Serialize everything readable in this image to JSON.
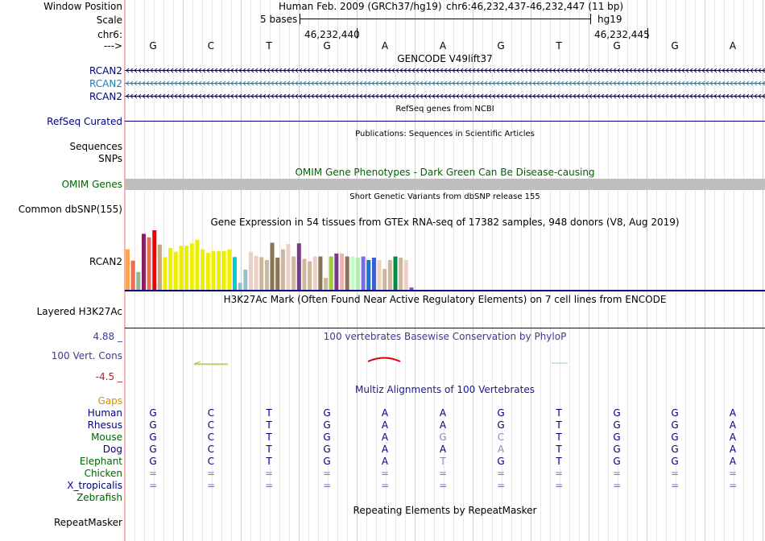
{
  "position": {
    "window_position_label": "Window Position",
    "assembly_text": "Human Feb. 2009 (GRCh37/hg19)",
    "range_text": "chr6:46,232,437-46,232,447 (11 bp)",
    "scale_label": "Scale",
    "scale_bases": "5 bases",
    "scale_db": "hg19",
    "chrom_label": "chr6:",
    "coord_left": "46,232,440",
    "coord_right": "46,232,445",
    "strand_label": "--->"
  },
  "sequence": [
    "G",
    "C",
    "T",
    "G",
    "A",
    "A",
    "G",
    "T",
    "G",
    "G",
    "A"
  ],
  "gencode": {
    "title": "GENCODE V49lift37",
    "tracks": [
      {
        "label": "RCAN2",
        "color": "#000080"
      },
      {
        "label": "RCAN2",
        "color": "#1a7fb5"
      },
      {
        "label": "RCAN2",
        "color": "#000080"
      }
    ]
  },
  "refseq": {
    "title": "RefSeq genes from NCBI",
    "label": "RefSeq Curated"
  },
  "pubs": {
    "title": "Publications: Sequences in Scientific Articles",
    "label_line1": "Sequences",
    "label_line2": "SNPs"
  },
  "omim": {
    "title": "OMIM Gene Phenotypes - Dark Green Can Be Disease-causing",
    "label": "OMIM Genes"
  },
  "dbsnp": {
    "title": "Short Genetic Variants from dbSNP release 155",
    "label": "Common dbSNP(155)"
  },
  "gtex": {
    "title": "Gene Expression in 54 tissues from GTEx RNA-seq of 17382 samples, 948 donors (V8, Aug 2019)",
    "label": "RCAN2",
    "bars": [
      {
        "v": 0.68,
        "c": "#ffa54f"
      },
      {
        "v": 0.49,
        "c": "#ee6a50"
      },
      {
        "v": 0.3,
        "c": "#8fbc8f"
      },
      {
        "v": 0.94,
        "c": "#8b1c62"
      },
      {
        "v": 0.88,
        "c": "#ee6a50"
      },
      {
        "v": 1.0,
        "c": "#ee0000"
      },
      {
        "v": 0.76,
        "c": "#c4a882"
      },
      {
        "v": 0.55,
        "c": "#eeee00"
      },
      {
        "v": 0.7,
        "c": "#eeee00"
      },
      {
        "v": 0.64,
        "c": "#eeee00"
      },
      {
        "v": 0.74,
        "c": "#eeee00"
      },
      {
        "v": 0.74,
        "c": "#eeee00"
      },
      {
        "v": 0.78,
        "c": "#eeee00"
      },
      {
        "v": 0.84,
        "c": "#eeee00"
      },
      {
        "v": 0.68,
        "c": "#eeee00"
      },
      {
        "v": 0.62,
        "c": "#eeee00"
      },
      {
        "v": 0.65,
        "c": "#eeee00"
      },
      {
        "v": 0.65,
        "c": "#eeee00"
      },
      {
        "v": 0.65,
        "c": "#eeee00"
      },
      {
        "v": 0.68,
        "c": "#eeee00"
      },
      {
        "v": 0.55,
        "c": "#00cdcd"
      },
      {
        "v": 0.12,
        "c": "#9ac0cd"
      },
      {
        "v": 0.34,
        "c": "#9ac0cd"
      },
      {
        "v": 0.64,
        "c": "#eecfc4"
      },
      {
        "v": 0.57,
        "c": "#eecfc4"
      },
      {
        "v": 0.55,
        "c": "#cdb79e"
      },
      {
        "v": 0.5,
        "c": "#cdb79e"
      },
      {
        "v": 0.79,
        "c": "#8b7355"
      },
      {
        "v": 0.54,
        "c": "#8b7355"
      },
      {
        "v": 0.68,
        "c": "#cdb79e"
      },
      {
        "v": 0.77,
        "c": "#eecfc4"
      },
      {
        "v": 0.56,
        "c": "#cdb79e"
      },
      {
        "v": 0.78,
        "c": "#7a378b"
      },
      {
        "v": 0.52,
        "c": "#cdb79e"
      },
      {
        "v": 0.48,
        "c": "#cdb79e"
      },
      {
        "v": 0.56,
        "c": "#eecfc4"
      },
      {
        "v": 0.56,
        "c": "#8b7355"
      },
      {
        "v": 0.2,
        "c": "#cdb79e"
      },
      {
        "v": 0.56,
        "c": "#9acd32"
      },
      {
        "v": 0.61,
        "c": "#7a378b"
      },
      {
        "v": 0.61,
        "c": "#eeb4b4"
      },
      {
        "v": 0.56,
        "c": "#8b7355"
      },
      {
        "v": 0.56,
        "c": "#c1ffc1"
      },
      {
        "v": 0.54,
        "c": "#b4eeb4"
      },
      {
        "v": 0.56,
        "c": "#7b68ee"
      },
      {
        "v": 0.5,
        "c": "#1874cd"
      },
      {
        "v": 0.54,
        "c": "#3a5fcd"
      },
      {
        "v": 0.5,
        "c": "#eed5b7"
      },
      {
        "v": 0.35,
        "c": "#cdb79e"
      },
      {
        "v": 0.5,
        "c": "#cdb79e"
      },
      {
        "v": 0.56,
        "c": "#008b45"
      },
      {
        "v": 0.54,
        "c": "#cdb79e"
      },
      {
        "v": 0.5,
        "c": "#eecfc4"
      },
      {
        "v": 0.04,
        "c": "#b23aee"
      }
    ]
  },
  "h3k27ac": {
    "title": "H3K27Ac Mark (Often Found Near Active Regulatory Elements) on 7 cell lines from ENCODE",
    "label": "Layered H3K27Ac"
  },
  "phylop": {
    "title": "100 vertebrates Basewise Conservation by PhyloP",
    "label": "100 Vert. Cons",
    "max": "4.88 _",
    "min": "-4.5 _"
  },
  "multiz": {
    "title": "Multiz Alignments of 100 Vertebrates",
    "gaps_label": "Gaps",
    "species": [
      {
        "name": "Human",
        "color": "#000080",
        "bases": [
          "G",
          "C",
          "T",
          "G",
          "A",
          "A",
          "G",
          "T",
          "G",
          "G",
          "A"
        ]
      },
      {
        "name": "Rhesus",
        "color": "#000080",
        "bases": [
          "G",
          "C",
          "T",
          "G",
          "A",
          "A",
          "G",
          "T",
          "G",
          "G",
          "A"
        ]
      },
      {
        "name": "Mouse",
        "color": "#006400",
        "bases": [
          "G",
          "C",
          "T",
          "G",
          "A",
          "G",
          "C",
          "T",
          "G",
          "G",
          "A"
        ]
      },
      {
        "name": "Dog",
        "color": "#000080",
        "bases": [
          "G",
          "C",
          "T",
          "G",
          "A",
          "A",
          "A",
          "T",
          "G",
          "G",
          "A"
        ]
      },
      {
        "name": "Elephant",
        "color": "#006400",
        "bases": [
          "G",
          "C",
          "T",
          "G",
          "A",
          "T",
          "G",
          "T",
          "G",
          "G",
          "A"
        ]
      },
      {
        "name": "Chicken",
        "color": "#006400",
        "bases": [
          "=",
          "=",
          "=",
          "=",
          "=",
          "=",
          "=",
          "=",
          "=",
          "=",
          "="
        ]
      },
      {
        "name": "X_tropicalis",
        "color": "#000080",
        "bases": [
          "=",
          "=",
          "=",
          "=",
          "=",
          "=",
          "=",
          "=",
          "=",
          "=",
          "="
        ]
      },
      {
        "name": "Zebrafish",
        "color": "#006400",
        "bases": []
      }
    ]
  },
  "rmsk": {
    "title": "Repeating Elements by RepeatMasker",
    "label": "RepeatMasker"
  }
}
